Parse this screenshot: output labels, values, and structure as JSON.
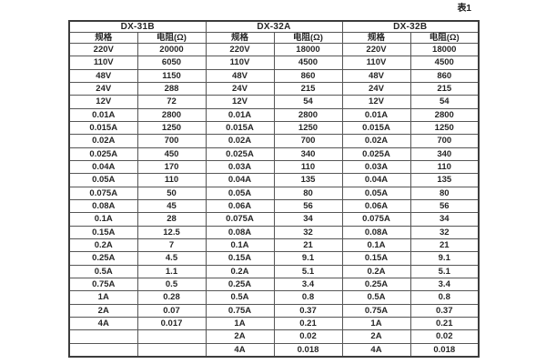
{
  "page": {
    "caption": "表1"
  },
  "table": {
    "groups": [
      {
        "title": "DX-31B",
        "headers": [
          "规格",
          "电阻(Ω)"
        ],
        "rows": [
          [
            "220V",
            "20000"
          ],
          [
            "110V",
            "6050"
          ],
          [
            "48V",
            "1150"
          ],
          [
            "24V",
            "288"
          ],
          [
            "12V",
            "72"
          ],
          [
            "0.01A",
            "2800"
          ],
          [
            "0.015A",
            "1250"
          ],
          [
            "0.02A",
            "700"
          ],
          [
            "0.025A",
            "450"
          ],
          [
            "0.04A",
            "170"
          ],
          [
            "0.05A",
            "110"
          ],
          [
            "0.075A",
            "50"
          ],
          [
            "0.08A",
            "45"
          ],
          [
            "0.1A",
            "28"
          ],
          [
            "0.15A",
            "12.5"
          ],
          [
            "0.2A",
            "7"
          ],
          [
            "0.25A",
            "4.5"
          ],
          [
            "0.5A",
            "1.1"
          ],
          [
            "0.75A",
            "0.5"
          ],
          [
            "1A",
            "0.28"
          ],
          [
            "2A",
            "0.07"
          ],
          [
            "4A",
            "0.017"
          ],
          [
            "",
            ""
          ],
          [
            "",
            ""
          ]
        ]
      },
      {
        "title": "DX-32A",
        "headers": [
          "规格",
          "电阻(Ω)"
        ],
        "rows": [
          [
            "220V",
            "18000"
          ],
          [
            "110V",
            "4500"
          ],
          [
            "48V",
            "860"
          ],
          [
            "24V",
            "215"
          ],
          [
            "12V",
            "54"
          ],
          [
            "0.01A",
            "2800"
          ],
          [
            "0.015A",
            "1250"
          ],
          [
            "0.02A",
            "700"
          ],
          [
            "0.025A",
            "340"
          ],
          [
            "0.03A",
            "110"
          ],
          [
            "0.04A",
            "135"
          ],
          [
            "0.05A",
            "80"
          ],
          [
            "0.06A",
            "56"
          ],
          [
            "0.075A",
            "34"
          ],
          [
            "0.08A",
            "32"
          ],
          [
            "0.1A",
            "21"
          ],
          [
            "0.15A",
            "9.1"
          ],
          [
            "0.2A",
            "5.1"
          ],
          [
            "0.25A",
            "3.4"
          ],
          [
            "0.5A",
            "0.8"
          ],
          [
            "0.75A",
            "0.37"
          ],
          [
            "1A",
            "0.21"
          ],
          [
            "2A",
            "0.02"
          ],
          [
            "4A",
            "0.018"
          ]
        ]
      },
      {
        "title": "DX-32B",
        "headers": [
          "规格",
          "电阻(Ω)"
        ],
        "rows": [
          [
            "220V",
            "18000"
          ],
          [
            "110V",
            "4500"
          ],
          [
            "48V",
            "860"
          ],
          [
            "24V",
            "215"
          ],
          [
            "12V",
            "54"
          ],
          [
            "0.01A",
            "2800"
          ],
          [
            "0.015A",
            "1250"
          ],
          [
            "0.02A",
            "700"
          ],
          [
            "0.025A",
            "340"
          ],
          [
            "0.03A",
            "110"
          ],
          [
            "0.04A",
            "135"
          ],
          [
            "0.05A",
            "80"
          ],
          [
            "0.06A",
            "56"
          ],
          [
            "0.075A",
            "34"
          ],
          [
            "0.08A",
            "32"
          ],
          [
            "0.1A",
            "21"
          ],
          [
            "0.15A",
            "9.1"
          ],
          [
            "0.2A",
            "5.1"
          ],
          [
            "0.25A",
            "3.4"
          ],
          [
            "0.5A",
            "0.8"
          ],
          [
            "0.75A",
            "0.37"
          ],
          [
            "1A",
            "0.21"
          ],
          [
            "2A",
            "0.02"
          ],
          [
            "4A",
            "0.018"
          ]
        ]
      }
    ]
  }
}
